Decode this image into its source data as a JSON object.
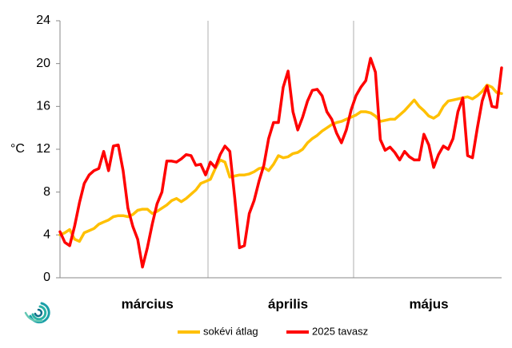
{
  "chart_data": {
    "type": "line",
    "y_label": "°C",
    "categories": [
      null,
      null,
      null,
      null,
      null,
      null,
      null,
      null,
      null,
      null,
      null,
      null,
      null,
      null,
      null,
      null,
      null,
      null,
      "március",
      null,
      null,
      null,
      null,
      null,
      null,
      null,
      null,
      null,
      null,
      null,
      null,
      null,
      null,
      null,
      null,
      null,
      null,
      null,
      null,
      null,
      null,
      null,
      null,
      null,
      null,
      null,
      null,
      "április",
      null,
      null,
      null,
      null,
      null,
      null,
      null,
      null,
      null,
      null,
      null,
      null,
      null,
      null,
      null,
      null,
      null,
      null,
      null,
      null,
      null,
      null,
      null,
      null,
      null,
      null,
      null,
      null,
      "május",
      null,
      null,
      null,
      null,
      null,
      null,
      null,
      null,
      null,
      null,
      null,
      null,
      null,
      null,
      null
    ],
    "series": [
      {
        "name": "sokévi átlag",
        "color": "#ffc000",
        "values": [
          4.0,
          4.2,
          4.5,
          3.6,
          3.4,
          4.2,
          4.4,
          4.6,
          5.0,
          5.2,
          5.4,
          5.7,
          5.8,
          5.8,
          5.7,
          5.9,
          6.3,
          6.4,
          6.4,
          6.0,
          6.2,
          6.5,
          6.8,
          7.2,
          7.4,
          7.1,
          7.4,
          7.8,
          8.2,
          8.8,
          9.0,
          9.2,
          10.2,
          11.0,
          10.8,
          9.4,
          9.5,
          9.6,
          9.6,
          9.7,
          9.9,
          10.2,
          10.3,
          10.0,
          10.6,
          11.4,
          11.2,
          11.3,
          11.6,
          11.7,
          12.0,
          12.6,
          13.0,
          13.3,
          13.7,
          14.0,
          14.3,
          14.5,
          14.6,
          14.8,
          15.0,
          15.2,
          15.5,
          15.5,
          15.4,
          15.1,
          14.6,
          14.7,
          14.8,
          14.8,
          15.2,
          15.6,
          16.1,
          16.6,
          16.0,
          15.6,
          15.1,
          14.9,
          15.2,
          16.0,
          16.5,
          16.6,
          16.7,
          16.8,
          16.9,
          16.7,
          17.0,
          17.4,
          18.0,
          17.8,
          17.3,
          17.2
        ]
      },
      {
        "name": "2025 tavasz",
        "color": "#ff0000",
        "values": [
          4.3,
          3.3,
          3.0,
          4.8,
          7.0,
          8.8,
          9.6,
          10.0,
          10.2,
          11.8,
          10.0,
          12.3,
          12.4,
          10.0,
          6.5,
          4.8,
          3.6,
          1.0,
          2.8,
          5.0,
          6.9,
          8.0,
          10.9,
          10.9,
          10.8,
          11.1,
          11.5,
          11.4,
          10.5,
          10.6,
          9.6,
          10.8,
          10.3,
          11.5,
          12.3,
          11.8,
          7.5,
          2.8,
          3.0,
          6.0,
          7.2,
          9.0,
          10.5,
          13.0,
          14.5,
          14.5,
          17.8,
          19.3,
          15.5,
          13.8,
          15.0,
          16.5,
          17.5,
          17.6,
          17.0,
          15.5,
          14.8,
          13.5,
          12.6,
          13.8,
          15.7,
          17.0,
          17.8,
          18.4,
          20.5,
          19.2,
          12.9,
          11.9,
          12.2,
          11.7,
          11.0,
          11.8,
          11.3,
          11.0,
          11.0,
          13.4,
          12.4,
          10.3,
          11.5,
          12.3,
          12.0,
          13.0,
          15.5,
          16.8,
          11.4,
          11.2,
          14.0,
          16.5,
          17.9,
          16.0,
          15.9,
          19.6
        ]
      }
    ],
    "ylim": [
      0,
      24
    ],
    "yticks": [
      0,
      4,
      8,
      12,
      16,
      20,
      24
    ],
    "grid": false
  }
}
